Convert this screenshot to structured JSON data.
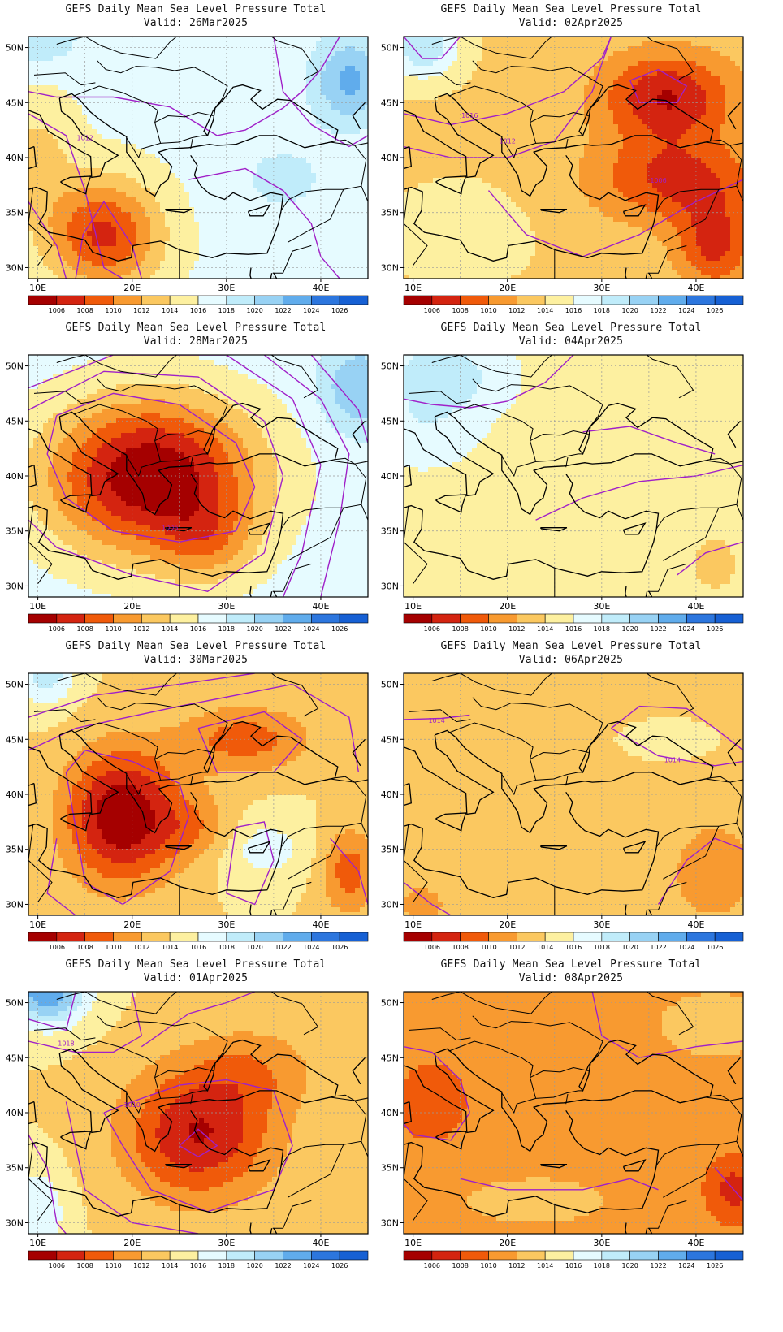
{
  "panels": [
    {
      "title": "GEFS Daily Mean Sea Level Pressure Total",
      "valid": "Valid: 26Mar2025",
      "field": "26Mar",
      "labels": [
        "1012"
      ]
    },
    {
      "title": "GEFS Daily Mean Sea Level Pressure Total",
      "valid": "Valid: 02Apr2025",
      "field": "02Apr",
      "labels": [
        "1016",
        "1012",
        "1006"
      ]
    },
    {
      "title": "GEFS Daily Mean Sea Level Pressure Total",
      "valid": "Valid: 28Mar2025",
      "field": "28Mar",
      "labels": [
        "1006"
      ]
    },
    {
      "title": "GEFS Daily Mean Sea Level Pressure Total",
      "valid": "Valid: 04Apr2025",
      "field": "04Apr",
      "labels": []
    },
    {
      "title": "GEFS Daily Mean Sea Level Pressure Total",
      "valid": "Valid: 30Mar2025",
      "field": "30Mar",
      "labels": []
    },
    {
      "title": "GEFS Daily Mean Sea Level Pressure Total",
      "valid": "Valid: 06Apr2025",
      "field": "06Apr",
      "labels": [
        "1014",
        "1014"
      ]
    },
    {
      "title": "GEFS Daily Mean Sea Level Pressure Total",
      "valid": "Valid: 01Apr2025",
      "field": "01Apr",
      "labels": [
        "1018",
        "1010"
      ]
    },
    {
      "title": "GEFS Daily Mean Sea Level Pressure Total",
      "valid": "Valid: 08Apr2025",
      "field": "08Apr",
      "labels": []
    }
  ],
  "lat_labels": [
    "50N",
    "45N",
    "40N",
    "35N",
    "30N"
  ],
  "lon_labels": [
    "10E",
    "20E",
    "30E",
    "40E"
  ],
  "colorbar": {
    "labels": [
      "1006",
      "1008",
      "1010",
      "1012",
      "1014",
      "1016",
      "1018",
      "1020",
      "1022",
      "1024",
      "1026"
    ],
    "colors": [
      "#a50000",
      "#d42410",
      "#f05a0a",
      "#f89a30",
      "#fbc860",
      "#fdf0a0",
      "#e6fbff",
      "#c0ecfa",
      "#98d2f4",
      "#60acec",
      "#2c76de",
      "#1660d4"
    ]
  }
}
